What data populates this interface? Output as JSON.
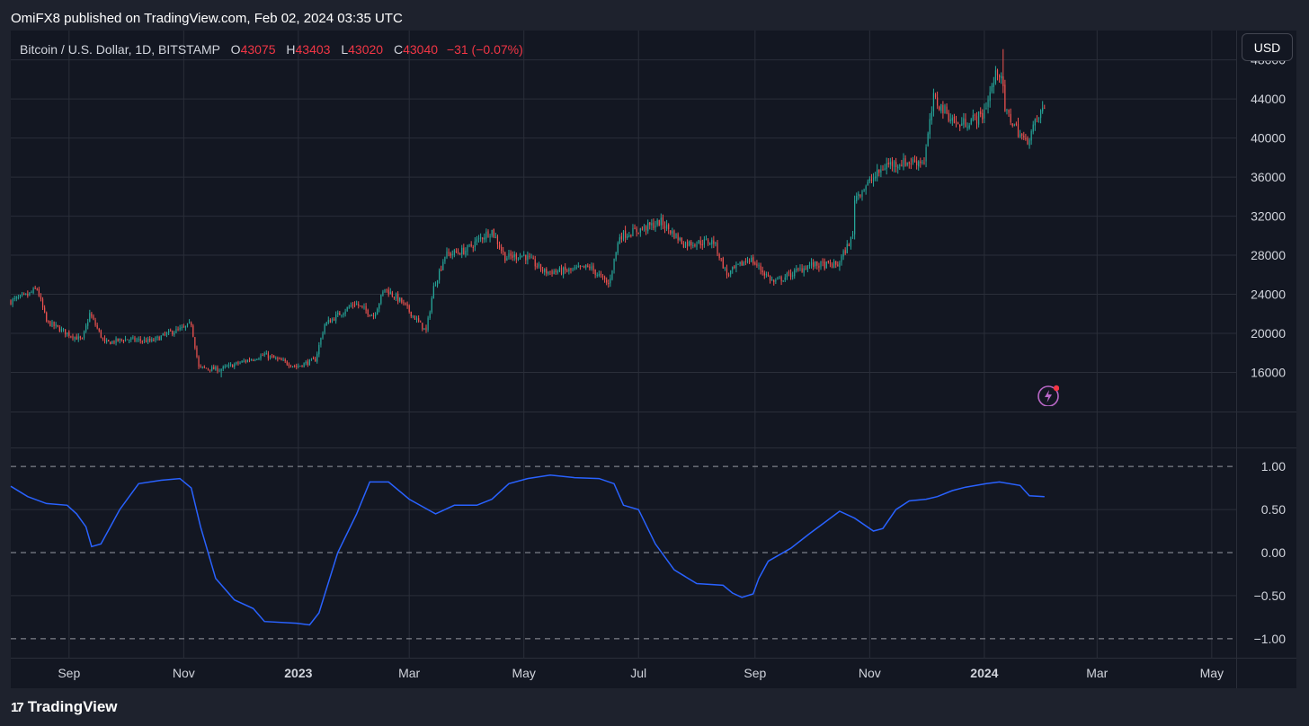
{
  "header": {
    "published": "OmiFX8 published on TradingView.com, Feb 02, 2024 03:35 UTC"
  },
  "legend": {
    "symbol": "Bitcoin / U.S. Dollar, 1D, BITSTAMP",
    "o_label": "O",
    "o": "43075",
    "h_label": "H",
    "h": "43403",
    "l_label": "L",
    "l": "43020",
    "c_label": "C",
    "c": "43040",
    "change": "−31 (−0.07%)"
  },
  "currency_button": "USD",
  "footer": {
    "brand": "TradingView",
    "logo": "17"
  },
  "icons": {
    "alert": "lightning-bolt-icon"
  },
  "colors": {
    "background": "#131722",
    "frame": "#1e222d",
    "up": "#26a69a",
    "down": "#ef5350",
    "indicator_line": "#2962ff",
    "grid": "#2a2e39"
  },
  "chart_data": [
    {
      "type": "candlestick",
      "title": "Bitcoin / U.S. Dollar, 1D, BITSTAMP",
      "y_axis": {
        "ticks": [
          16000,
          20000,
          24000,
          28000,
          32000,
          36000,
          40000,
          44000,
          48000
        ],
        "ylim": [
          12000,
          51000
        ],
        "position": "right"
      },
      "x_axis": {
        "ticks": [
          {
            "label": "Sep",
            "x": "2022-09-01",
            "bold": false
          },
          {
            "label": "Nov",
            "x": "2022-11-01",
            "bold": false
          },
          {
            "label": "2023",
            "x": "2023-01-01",
            "bold": true
          },
          {
            "label": "Mar",
            "x": "2023-03-01",
            "bold": false
          },
          {
            "label": "May",
            "x": "2023-05-01",
            "bold": false
          },
          {
            "label": "Jul",
            "x": "2023-07-01",
            "bold": false
          },
          {
            "label": "Sep",
            "x": "2023-09-01",
            "bold": false
          },
          {
            "label": "Nov",
            "x": "2023-11-01",
            "bold": false
          },
          {
            "label": "2024",
            "x": "2024-01-01",
            "bold": true
          },
          {
            "label": "Mar",
            "x": "2024-03-01",
            "bold": false
          },
          {
            "label": "May",
            "x": "2024-05-01",
            "bold": false
          }
        ],
        "xlim": [
          "2022-08-01",
          "2024-05-14"
        ]
      },
      "price_path": [
        [
          "2022-08-01",
          23300
        ],
        [
          "2022-08-10",
          23900
        ],
        [
          "2022-08-15",
          24600
        ],
        [
          "2022-08-20",
          21200
        ],
        [
          "2022-08-31",
          20000
        ],
        [
          "2022-09-08",
          19300
        ],
        [
          "2022-09-12",
          22000
        ],
        [
          "2022-09-20",
          19000
        ],
        [
          "2022-10-01",
          19400
        ],
        [
          "2022-10-15",
          19200
        ],
        [
          "2022-10-25",
          20100
        ],
        [
          "2022-11-01",
          20500
        ],
        [
          "2022-11-05",
          21000
        ],
        [
          "2022-11-09",
          16500
        ],
        [
          "2022-11-20",
          16300
        ],
        [
          "2022-12-01",
          17000
        ],
        [
          "2022-12-14",
          17800
        ],
        [
          "2022-12-31",
          16600
        ],
        [
          "2023-01-10",
          17300
        ],
        [
          "2023-01-15",
          20900
        ],
        [
          "2023-01-31",
          23100
        ],
        [
          "2023-02-10",
          21800
        ],
        [
          "2023-02-16",
          24600
        ],
        [
          "2023-02-25",
          23200
        ],
        [
          "2023-03-10",
          20200
        ],
        [
          "2023-03-14",
          24700
        ],
        [
          "2023-03-20",
          28000
        ],
        [
          "2023-03-31",
          28500
        ],
        [
          "2023-04-11",
          30200
        ],
        [
          "2023-04-14",
          30500
        ],
        [
          "2023-04-21",
          27800
        ],
        [
          "2023-05-01",
          28000
        ],
        [
          "2023-05-12",
          26300
        ],
        [
          "2023-05-25",
          26400
        ],
        [
          "2023-06-05",
          26800
        ],
        [
          "2023-06-15",
          25000
        ],
        [
          "2023-06-21",
          30000
        ],
        [
          "2023-06-30",
          30500
        ],
        [
          "2023-07-13",
          31400
        ],
        [
          "2023-07-25",
          29200
        ],
        [
          "2023-08-10",
          29400
        ],
        [
          "2023-08-17",
          26000
        ],
        [
          "2023-08-29",
          27700
        ],
        [
          "2023-09-11",
          25200
        ],
        [
          "2023-09-30",
          27000
        ],
        [
          "2023-10-15",
          27000
        ],
        [
          "2023-10-23",
          30000
        ],
        [
          "2023-10-24",
          33900
        ],
        [
          "2023-11-10",
          37300
        ],
        [
          "2023-11-30",
          37700
        ],
        [
          "2023-12-05",
          44000
        ],
        [
          "2023-12-18",
          41300
        ],
        [
          "2023-12-31",
          42300
        ],
        [
          "2024-01-08",
          46900
        ],
        [
          "2024-01-10",
          46600
        ],
        [
          "2024-01-12",
          42800
        ],
        [
          "2024-01-23",
          39500
        ],
        [
          "2024-01-31",
          42600
        ],
        [
          "2024-02-02",
          43040
        ]
      ],
      "last_bar": {
        "date": "2024-02-02",
        "open": 43075,
        "high": 43403,
        "low": 43020,
        "close": 43040
      },
      "ohlc_highlights": [
        {
          "note": "peak",
          "x": "2024-01-11",
          "high": 49100
        },
        {
          "note": "low",
          "x": "2022-11-21",
          "low": 15500
        }
      ]
    },
    {
      "type": "line",
      "y_axis": {
        "ticks": [
          1.0,
          0.5,
          0.0,
          -0.5,
          -1.0
        ],
        "tick_labels": [
          "1.00",
          "0.50",
          "0.00",
          "−0.50",
          "−1.00"
        ],
        "ylim": [
          -1.2,
          1.2
        ],
        "dashed_levels": [
          1.0,
          0.0,
          -1.0
        ]
      },
      "series": [
        {
          "points": [
            [
              "2022-08-01",
              0.77
            ],
            [
              "2022-08-10",
              0.65
            ],
            [
              "2022-08-20",
              0.57
            ],
            [
              "2022-08-31",
              0.55
            ],
            [
              "2022-09-05",
              0.45
            ],
            [
              "2022-09-10",
              0.3
            ],
            [
              "2022-09-13",
              0.07
            ],
            [
              "2022-09-18",
              0.1
            ],
            [
              "2022-09-28",
              0.5
            ],
            [
              "2022-10-08",
              0.8
            ],
            [
              "2022-10-20",
              0.84
            ],
            [
              "2022-10-30",
              0.86
            ],
            [
              "2022-11-05",
              0.75
            ],
            [
              "2022-11-10",
              0.3
            ],
            [
              "2022-11-18",
              -0.3
            ],
            [
              "2022-11-28",
              -0.55
            ],
            [
              "2022-12-08",
              -0.65
            ],
            [
              "2022-12-14",
              -0.8
            ],
            [
              "2022-12-31",
              -0.82
            ],
            [
              "2023-01-07",
              -0.84
            ],
            [
              "2023-01-12",
              -0.7
            ],
            [
              "2023-01-22",
              0.0
            ],
            [
              "2023-02-01",
              0.45
            ],
            [
              "2023-02-08",
              0.82
            ],
            [
              "2023-02-18",
              0.82
            ],
            [
              "2023-03-01",
              0.62
            ],
            [
              "2023-03-15",
              0.45
            ],
            [
              "2023-03-25",
              0.55
            ],
            [
              "2023-04-06",
              0.55
            ],
            [
              "2023-04-14",
              0.62
            ],
            [
              "2023-04-23",
              0.8
            ],
            [
              "2023-05-03",
              0.86
            ],
            [
              "2023-05-15",
              0.9
            ],
            [
              "2023-05-28",
              0.87
            ],
            [
              "2023-06-10",
              0.86
            ],
            [
              "2023-06-18",
              0.8
            ],
            [
              "2023-06-23",
              0.55
            ],
            [
              "2023-07-01",
              0.5
            ],
            [
              "2023-07-10",
              0.1
            ],
            [
              "2023-07-20",
              -0.2
            ],
            [
              "2023-08-01",
              -0.36
            ],
            [
              "2023-08-15",
              -0.38
            ],
            [
              "2023-08-20",
              -0.47
            ],
            [
              "2023-08-25",
              -0.52
            ],
            [
              "2023-08-31",
              -0.48
            ],
            [
              "2023-09-03",
              -0.3
            ],
            [
              "2023-09-08",
              -0.1
            ],
            [
              "2023-09-20",
              0.05
            ],
            [
              "2023-09-30",
              0.22
            ],
            [
              "2023-10-08",
              0.35
            ],
            [
              "2023-10-16",
              0.48
            ],
            [
              "2023-10-24",
              0.4
            ],
            [
              "2023-11-03",
              0.25
            ],
            [
              "2023-11-08",
              0.28
            ],
            [
              "2023-11-15",
              0.5
            ],
            [
              "2023-11-22",
              0.6
            ],
            [
              "2023-12-01",
              0.62
            ],
            [
              "2023-12-07",
              0.65
            ],
            [
              "2023-12-15",
              0.72
            ],
            [
              "2023-12-22",
              0.76
            ],
            [
              "2024-01-02",
              0.8
            ],
            [
              "2024-01-09",
              0.82
            ],
            [
              "2024-01-20",
              0.78
            ],
            [
              "2024-01-25",
              0.66
            ],
            [
              "2024-02-02",
              0.65
            ]
          ]
        }
      ]
    }
  ]
}
